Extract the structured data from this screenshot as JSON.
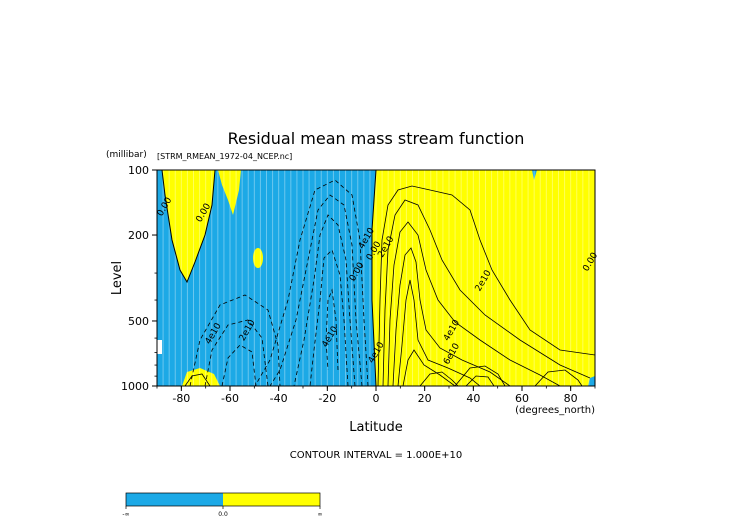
{
  "chart_data": {
    "type": "contour",
    "title": "Residual mean mass stream function",
    "dataset_label": "[STRM_RMEAN_1972-04_NCEP.nc]",
    "xlabel": "Latitude",
    "x_units": "(degrees_north)",
    "ylabel": "Level",
    "y_units": "(millibar)",
    "xlim": [
      -90,
      90
    ],
    "ylim": [
      1000,
      100
    ],
    "y_scale": "log",
    "x_ticks": [
      -80,
      -60,
      -40,
      -20,
      0,
      20,
      40,
      60,
      80
    ],
    "y_ticks": [
      100,
      200,
      500,
      1000
    ],
    "contour_interval_text": "CONTOUR INTERVAL = 1.000E+10",
    "contour_labels": [
      {
        "text": "0.00",
        "lat": -86,
        "level": 150
      },
      {
        "text": "0.00",
        "lat": -70,
        "level": 160
      },
      {
        "text": "0.00",
        "lat": 89,
        "level": 270
      },
      {
        "text": "0.00",
        "lat": -7,
        "level": 300
      },
      {
        "text": "0.00",
        "lat": 0,
        "level": 240
      },
      {
        "text": "2e10",
        "lat": 5,
        "level": 230
      },
      {
        "text": "2e10",
        "lat": -52,
        "level": 560
      },
      {
        "text": "4e10",
        "lat": -66,
        "level": 580
      },
      {
        "text": "4e10",
        "lat": -18,
        "level": 600
      },
      {
        "text": "2e10",
        "lat": 45,
        "level": 330
      },
      {
        "text": "4e10",
        "lat": 32,
        "level": 560
      },
      {
        "text": "6e10",
        "lat": 32,
        "level": 720
      },
      {
        "text": "4e10",
        "lat": 1,
        "level": 710
      },
      {
        "text": "4e10",
        "lat": -3,
        "level": 210
      }
    ],
    "fill_colors": {
      "negative": "#1ca9e6",
      "positive": "#ffff00"
    },
    "colorbar": {
      "labels": [
        "-∞",
        "0.0",
        "∞"
      ],
      "colors": [
        "#1ca9e6",
        "#ffff00"
      ]
    }
  }
}
